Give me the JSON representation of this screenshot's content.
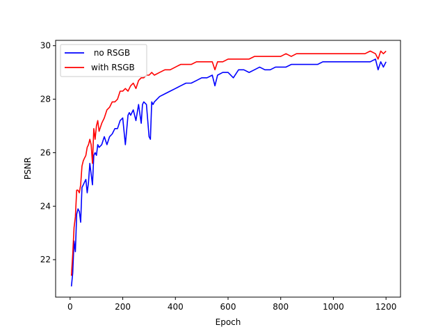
{
  "chart_data": {
    "type": "line",
    "title": "",
    "xlabel": "Epoch",
    "ylabel": "PSNR",
    "xlim": [
      -55,
      1255
    ],
    "ylim": [
      20.6,
      30.2
    ],
    "xticks": [
      0,
      200,
      400,
      600,
      800,
      1000,
      1200
    ],
    "yticks": [
      22,
      24,
      26,
      28,
      30
    ],
    "grid": false,
    "legend": "top-left",
    "series": [
      {
        "name": " no RSGB",
        "color": "#0000ff",
        "x": [
          5,
          10,
          15,
          20,
          25,
          30,
          35,
          40,
          45,
          50,
          55,
          60,
          65,
          70,
          75,
          80,
          85,
          90,
          95,
          100,
          105,
          110,
          120,
          130,
          140,
          150,
          160,
          170,
          180,
          190,
          200,
          210,
          220,
          225,
          230,
          240,
          250,
          260,
          270,
          275,
          280,
          290,
          300,
          305,
          310,
          315,
          320,
          340,
          360,
          380,
          400,
          420,
          440,
          460,
          480,
          500,
          520,
          540,
          550,
          560,
          580,
          600,
          620,
          640,
          660,
          680,
          700,
          720,
          740,
          760,
          780,
          800,
          820,
          840,
          860,
          880,
          900,
          920,
          940,
          960,
          980,
          1000,
          1020,
          1040,
          1060,
          1080,
          1100,
          1120,
          1140,
          1160,
          1170,
          1180,
          1190,
          1200
        ],
        "y": [
          21.0,
          21.5,
          22.7,
          22.3,
          23.7,
          23.9,
          23.8,
          23.4,
          24.7,
          24.8,
          24.9,
          25.0,
          24.5,
          24.9,
          25.6,
          25.2,
          24.8,
          25.9,
          26.0,
          25.9,
          26.3,
          26.2,
          26.3,
          26.6,
          26.3,
          26.6,
          26.7,
          26.9,
          26.9,
          27.2,
          27.3,
          26.3,
          27.4,
          27.5,
          27.4,
          27.6,
          27.2,
          27.8,
          27.1,
          27.8,
          27.9,
          27.8,
          26.6,
          26.5,
          27.9,
          27.8,
          27.9,
          28.1,
          28.2,
          28.3,
          28.4,
          28.5,
          28.6,
          28.6,
          28.7,
          28.8,
          28.8,
          28.9,
          28.5,
          28.9,
          29.0,
          29.0,
          28.8,
          29.1,
          29.1,
          29.0,
          29.1,
          29.2,
          29.1,
          29.1,
          29.2,
          29.2,
          29.2,
          29.3,
          29.3,
          29.3,
          29.3,
          29.3,
          29.3,
          29.4,
          29.4,
          29.4,
          29.4,
          29.4,
          29.4,
          29.4,
          29.4,
          29.4,
          29.4,
          29.5,
          29.1,
          29.4,
          29.2,
          29.4
        ]
      },
      {
        "name": "with RSGB",
        "color": "#ff0000",
        "x": [
          5,
          10,
          15,
          20,
          25,
          30,
          35,
          40,
          45,
          50,
          55,
          60,
          65,
          70,
          75,
          80,
          85,
          90,
          95,
          100,
          105,
          110,
          120,
          130,
          140,
          150,
          160,
          170,
          180,
          190,
          200,
          210,
          220,
          230,
          240,
          250,
          260,
          270,
          280,
          290,
          300,
          310,
          320,
          340,
          360,
          380,
          400,
          420,
          440,
          460,
          480,
          500,
          520,
          540,
          550,
          560,
          580,
          600,
          620,
          640,
          660,
          680,
          700,
          720,
          740,
          760,
          780,
          800,
          820,
          840,
          860,
          880,
          900,
          920,
          940,
          960,
          980,
          1000,
          1020,
          1040,
          1060,
          1080,
          1100,
          1120,
          1140,
          1160,
          1170,
          1180,
          1190,
          1200
        ],
        "y": [
          21.4,
          22.2,
          23.2,
          23.6,
          24.6,
          24.6,
          24.5,
          24.8,
          25.5,
          25.7,
          25.8,
          25.9,
          26.2,
          26.3,
          26.5,
          26.3,
          25.6,
          26.9,
          26.5,
          27.0,
          27.2,
          26.8,
          27.1,
          27.3,
          27.6,
          27.7,
          27.9,
          27.9,
          28.0,
          28.3,
          28.3,
          28.4,
          28.3,
          28.5,
          28.6,
          28.4,
          28.7,
          28.8,
          28.8,
          28.9,
          28.9,
          29.0,
          28.9,
          29.0,
          29.1,
          29.1,
          29.2,
          29.3,
          29.3,
          29.3,
          29.4,
          29.4,
          29.4,
          29.4,
          29.1,
          29.4,
          29.4,
          29.5,
          29.5,
          29.5,
          29.5,
          29.5,
          29.6,
          29.6,
          29.6,
          29.6,
          29.6,
          29.6,
          29.7,
          29.6,
          29.7,
          29.7,
          29.7,
          29.7,
          29.7,
          29.7,
          29.7,
          29.7,
          29.7,
          29.7,
          29.7,
          29.7,
          29.7,
          29.7,
          29.8,
          29.7,
          29.5,
          29.8,
          29.7,
          29.8
        ]
      }
    ]
  }
}
